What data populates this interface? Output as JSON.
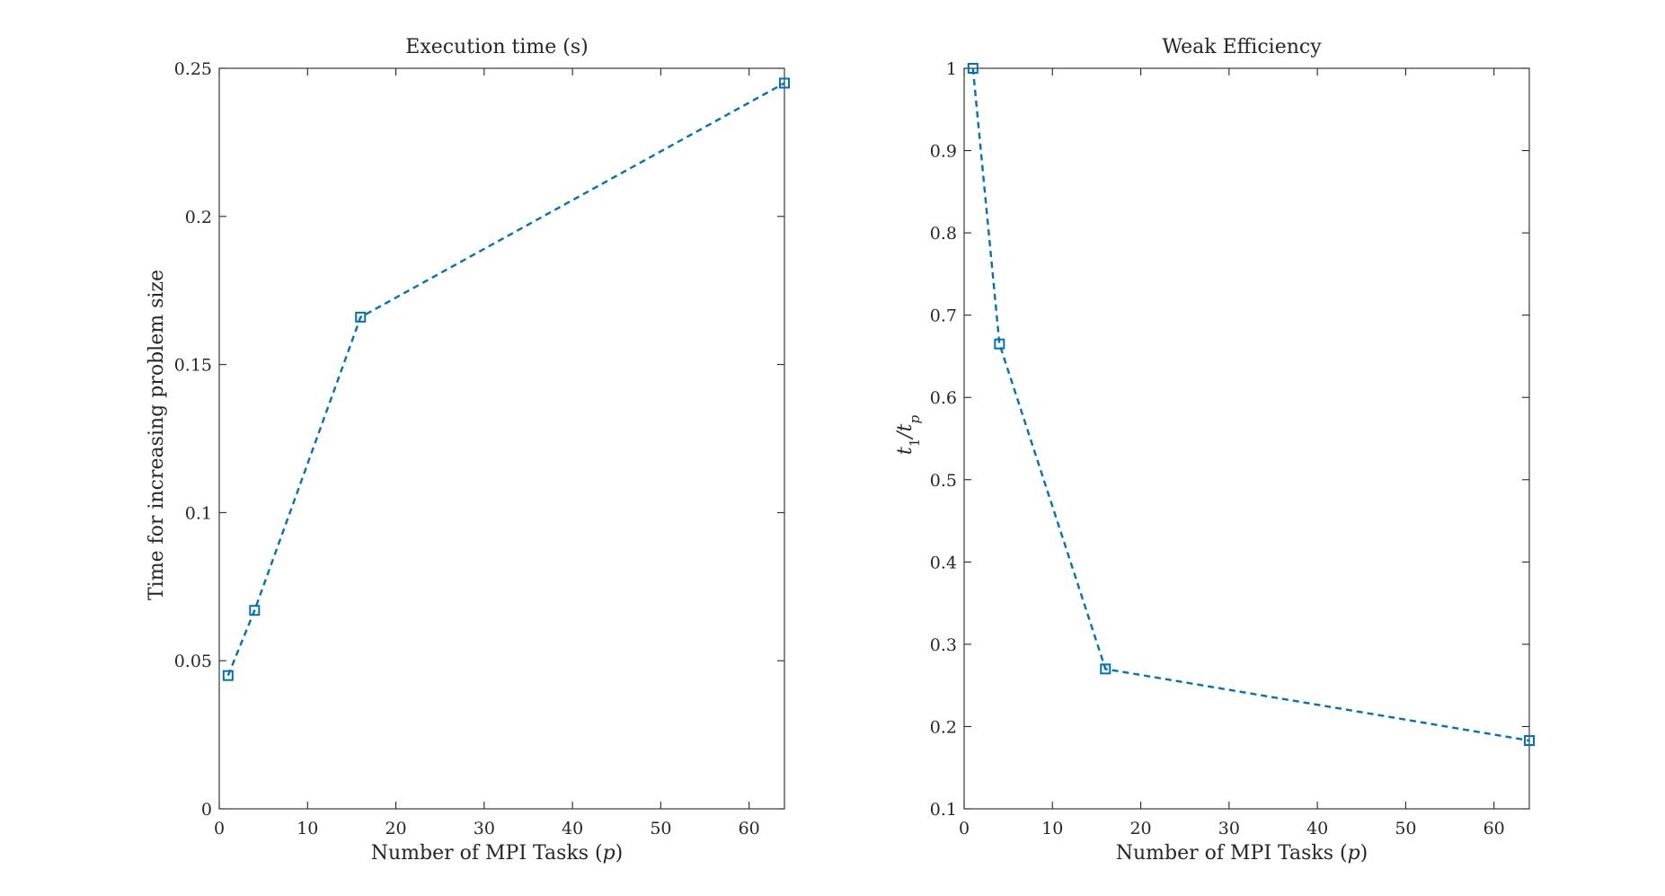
{
  "chart_data": [
    {
      "type": "line",
      "title": "Execution time (s)",
      "xlabel": "Number of MPI Tasks (p)",
      "xlabel_parts": [
        {
          "text": "Number of MPI Tasks (",
          "italic": false
        },
        {
          "text": "p",
          "italic": true
        },
        {
          "text": ")",
          "italic": false
        }
      ],
      "ylabel": "Time for increasing problem size",
      "xlim": [
        0,
        64
      ],
      "ylim": [
        0,
        0.25
      ],
      "xticks": [
        0,
        10,
        20,
        30,
        40,
        50,
        60
      ],
      "xtick_labels": [
        "0",
        "10",
        "20",
        "30",
        "40",
        "50",
        "60"
      ],
      "yticks": [
        0,
        0.05,
        0.1,
        0.15,
        0.2,
        0.25
      ],
      "ytick_labels": [
        "0",
        "0.05",
        "0.1",
        "0.15",
        "0.2",
        "0.25"
      ],
      "grid": false,
      "series": [
        {
          "x": [
            1,
            4,
            16,
            64
          ],
          "y": [
            0.045,
            0.067,
            0.166,
            0.245
          ],
          "color": "#0072BD",
          "line_style": "dashed",
          "marker": "square"
        }
      ]
    },
    {
      "type": "line",
      "title": "Weak Efficiency",
      "xlabel": "Number of MPI Tasks (p)",
      "xlabel_parts": [
        {
          "text": "Number of MPI Tasks (",
          "italic": false
        },
        {
          "text": "p",
          "italic": true
        },
        {
          "text": ")",
          "italic": false
        }
      ],
      "ylabel": "t1/tp",
      "xlim": [
        0,
        64
      ],
      "ylim": [
        0.1,
        1
      ],
      "xticks": [
        0,
        10,
        20,
        30,
        40,
        50,
        60
      ],
      "xtick_labels": [
        "0",
        "10",
        "20",
        "30",
        "40",
        "50",
        "60"
      ],
      "yticks": [
        0.1,
        0.2,
        0.3,
        0.4,
        0.5,
        0.6,
        0.7,
        0.8,
        0.9,
        1
      ],
      "ytick_labels": [
        "0.1",
        "0.2",
        "0.3",
        "0.4",
        "0.5",
        "0.6",
        "0.7",
        "0.8",
        "0.9",
        "1"
      ],
      "grid": false,
      "series": [
        {
          "x": [
            1,
            4,
            16,
            64
          ],
          "y": [
            1.0,
            0.665,
            0.27,
            0.183
          ],
          "color": "#0072BD",
          "line_style": "dashed",
          "marker": "square"
        }
      ]
    }
  ]
}
